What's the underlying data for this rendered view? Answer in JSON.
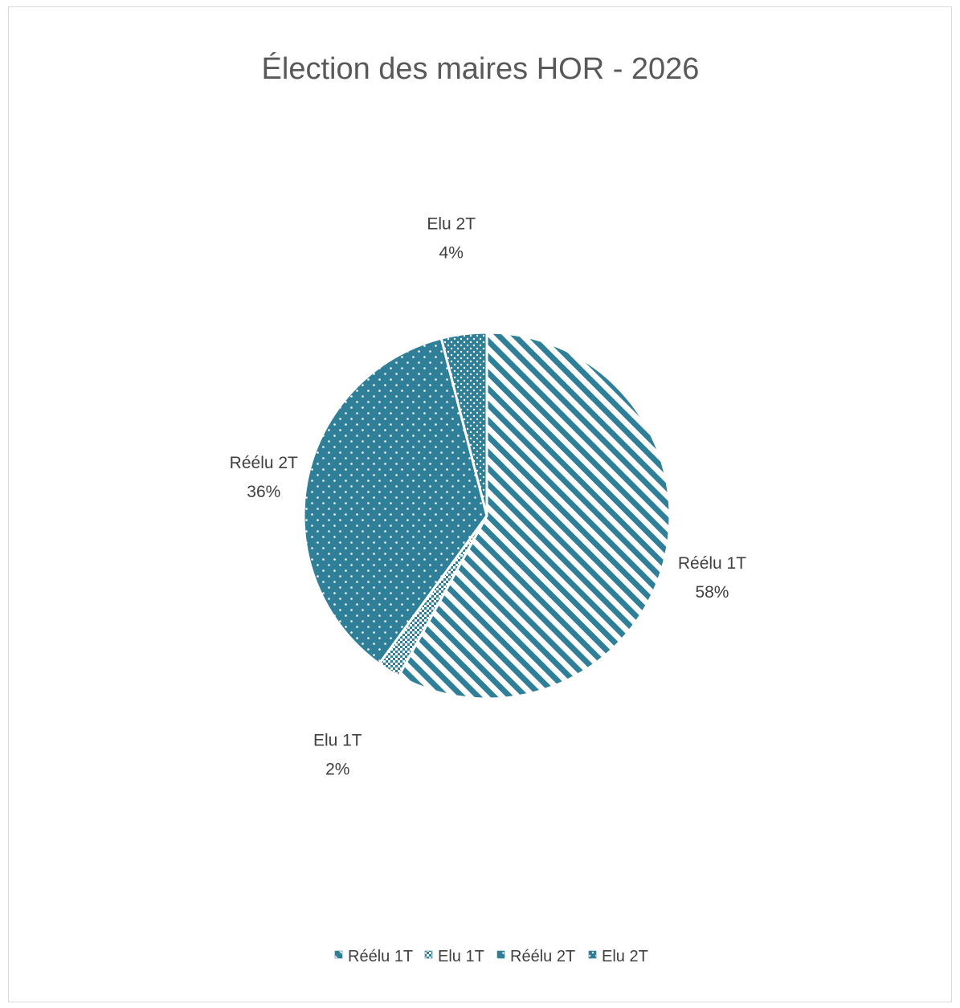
{
  "chart_data": {
    "type": "pie",
    "title": "Élection des maires HOR - 2026",
    "slices": [
      {
        "name": "Réélu 1T",
        "value": 58,
        "label_pct": "58%",
        "pattern": "diagonal-stripes",
        "label_pos": "right"
      },
      {
        "name": "Elu 1T",
        "value": 2,
        "label_pct": "2%",
        "pattern": "small-checker",
        "label_pos": "bottom-left"
      },
      {
        "name": "Réélu 2T",
        "value": 36,
        "label_pct": "36%",
        "pattern": "dots",
        "label_pos": "left"
      },
      {
        "name": "Elu 2T",
        "value": 4,
        "label_pct": "4%",
        "pattern": "dense-dots",
        "label_pos": "top"
      }
    ],
    "legend": {
      "position": "bottom",
      "entries": [
        "Réélu 1T",
        "Elu 1T",
        "Réélu 2T",
        "Elu 2T"
      ]
    },
    "colors": {
      "slice": "#2e7f97",
      "pattern_bg": "#ffffff",
      "title": "#595959",
      "text": "#404040"
    }
  }
}
